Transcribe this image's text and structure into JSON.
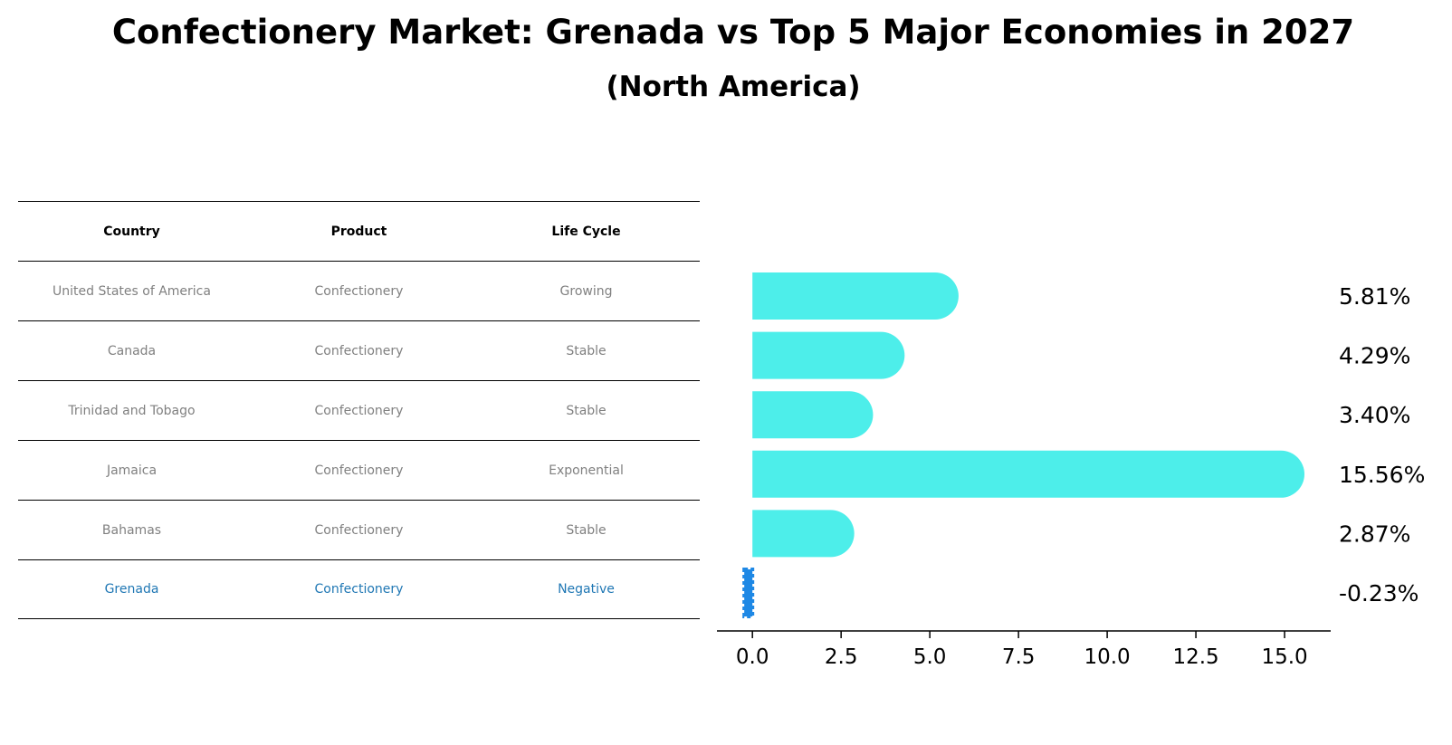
{
  "title": "Confectionery Market: Grenada vs Top 5 Major Economies in 2027",
  "subtitle": "(North America)",
  "table": {
    "headers": [
      "Country",
      "Product",
      "Life Cycle"
    ],
    "rows": [
      [
        "United States of America",
        "Confectionery",
        "Growing"
      ],
      [
        "Canada",
        "Confectionery",
        "Stable"
      ],
      [
        "Trinidad and Tobago",
        "Confectionery",
        "Stable"
      ],
      [
        "Jamaica",
        "Confectionery",
        "Exponential"
      ],
      [
        "Bahamas",
        "Confectionery",
        "Stable"
      ],
      [
        "Grenada",
        "Confectionery",
        "Negative"
      ]
    ]
  },
  "colors": {
    "bar": "#4deeea",
    "highlight": "#1f77b4",
    "highlight_bar": "#1e88e5",
    "muted_text": "#808080"
  },
  "chart_data": {
    "type": "bar",
    "orientation": "horizontal",
    "categories": [
      "United States of America",
      "Canada",
      "Trinidad and Tobago",
      "Jamaica",
      "Bahamas",
      "Grenada"
    ],
    "values": [
      5.81,
      4.29,
      3.4,
      15.56,
      2.87,
      -0.23
    ],
    "value_labels": [
      "5.81%",
      "4.29%",
      "3.40%",
      "15.56%",
      "2.87%",
      "-0.23%"
    ],
    "xlim": [
      -1.0,
      16.3
    ],
    "xticks": [
      0.0,
      2.5,
      5.0,
      7.5,
      10.0,
      12.5,
      15.0
    ],
    "xtick_labels": [
      "0.0",
      "2.5",
      "5.0",
      "7.5",
      "10.0",
      "12.5",
      "15.0"
    ],
    "grid": false,
    "highlight_category": "Grenada"
  }
}
